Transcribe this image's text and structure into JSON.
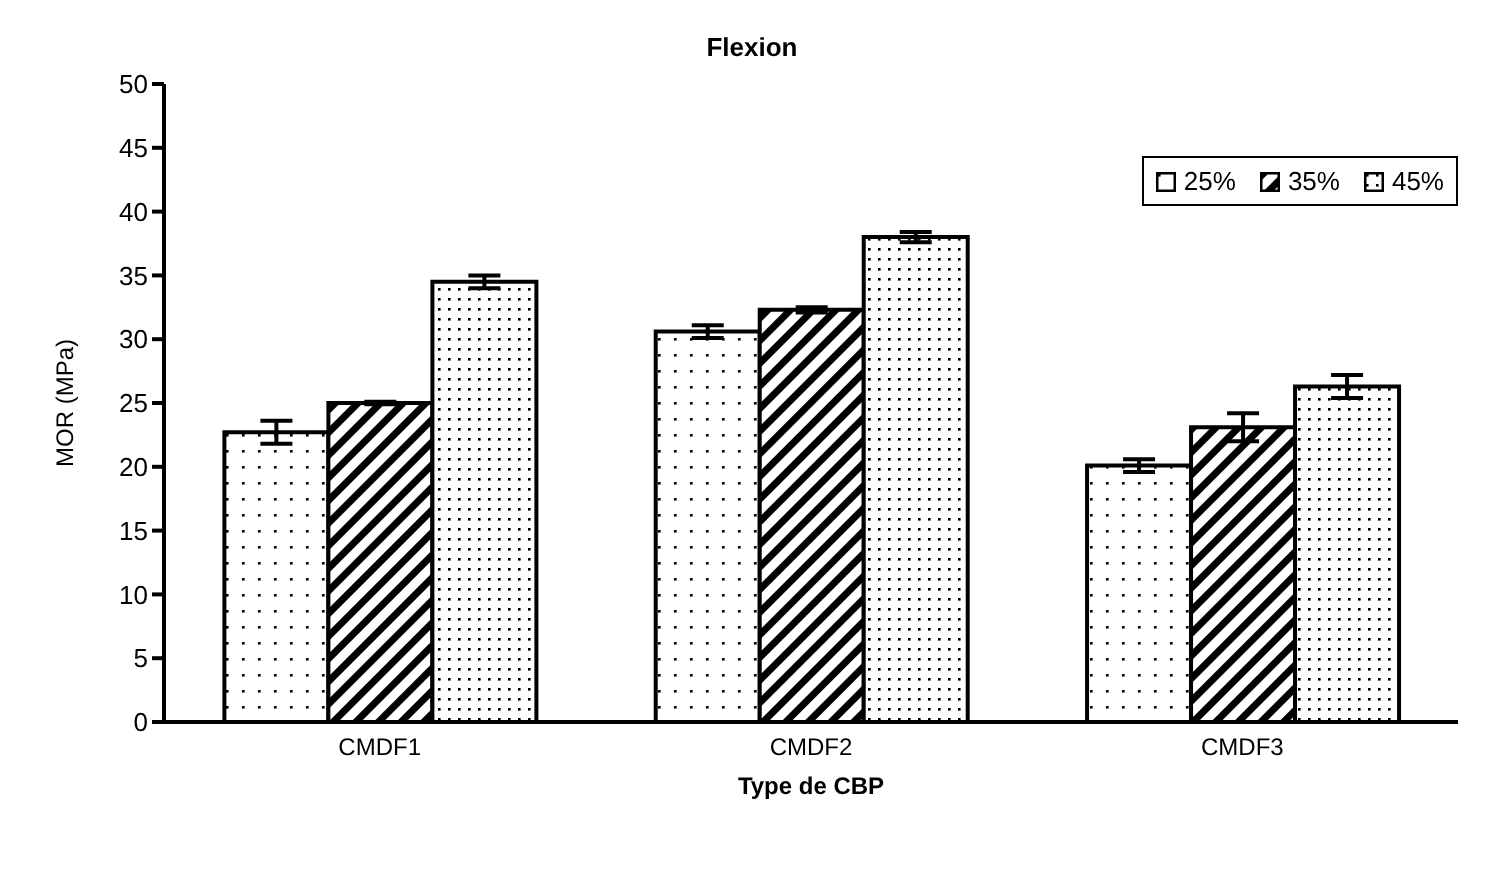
{
  "chart_data": {
    "type": "bar",
    "title": "Flexion",
    "xlabel": "Type de CBP",
    "ylabel": "MOR (MPa)",
    "categories": [
      "CMDF1",
      "CMDF2",
      "CMDF3"
    ],
    "series": [
      {
        "name": "25%",
        "color": "#000000",
        "values": [
          22.7,
          30.6,
          20.1
        ],
        "errors": [
          0.9,
          0.5,
          0.5
        ]
      },
      {
        "name": "35%",
        "color": "#000000",
        "values": [
          25.0,
          32.3,
          23.1
        ],
        "errors": [
          0.1,
          0.2,
          1.1
        ]
      },
      {
        "name": "45%",
        "color": "#000000",
        "values": [
          34.5,
          38.0,
          26.3
        ],
        "errors": [
          0.5,
          0.4,
          0.9
        ]
      }
    ],
    "ylim": [
      0,
      50
    ],
    "yticks": [
      0,
      5,
      10,
      15,
      20,
      25,
      30,
      35,
      40,
      45,
      50
    ],
    "grid": false,
    "legend": "top right"
  }
}
